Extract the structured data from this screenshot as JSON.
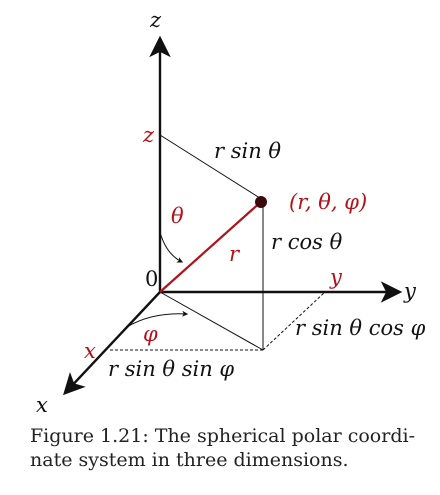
{
  "diagram": {
    "axis_labels": {
      "x": "x",
      "y": "y",
      "z": "z"
    },
    "origin_label": "0",
    "projection_labels": {
      "x": "x",
      "y": "y",
      "z": "z"
    },
    "point_label": "(r, θ, φ)",
    "radius_label": "r",
    "theta_label": "θ",
    "phi_label": "φ",
    "segment_labels": {
      "top": "r sin θ",
      "vertical": "r cos θ",
      "front": "r sin θ sin φ",
      "side": "r sin θ cos φ"
    },
    "colors": {
      "accent": "#b0121b",
      "ink": "#111111"
    }
  },
  "caption": {
    "line1": "Figure 1.21: The spherical polar coordi-",
    "line2": "nate system in three dimensions."
  }
}
